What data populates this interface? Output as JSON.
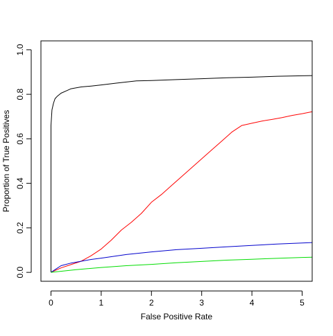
{
  "chart_data": {
    "type": "line",
    "title": "",
    "xlabel": "False Positive Rate",
    "ylabel": "Proportion of True Positives",
    "xlim": [
      -0.2,
      5.2
    ],
    "ylim": [
      -0.04,
      1.04
    ],
    "xticks": [
      0,
      1,
      2,
      3,
      4,
      5
    ],
    "yticks": [
      0.0,
      0.2,
      0.4,
      0.6,
      0.8,
      1.0
    ],
    "xtick_labels": [
      "0",
      "1",
      "2",
      "3",
      "4",
      "5"
    ],
    "ytick_labels": [
      "0.0",
      "0.2",
      "0.4",
      "0.6",
      "0.8",
      "1.0"
    ],
    "grid": false,
    "legend": "none",
    "series": [
      {
        "color": "#000000",
        "x": [
          0,
          0.0,
          0.02,
          0.05,
          0.08,
          0.12,
          0.2,
          0.3,
          0.4,
          0.6,
          0.8,
          1.0,
          1.3,
          1.7,
          2.0,
          2.5,
          3.0,
          3.5,
          4.0,
          4.5,
          5.0,
          5.2
        ],
        "y": [
          0,
          0.66,
          0.73,
          0.76,
          0.78,
          0.79,
          0.805,
          0.815,
          0.825,
          0.833,
          0.837,
          0.842,
          0.85,
          0.86,
          0.862,
          0.866,
          0.87,
          0.874,
          0.877,
          0.881,
          0.883,
          0.884
        ]
      },
      {
        "color": "#ff0000",
        "x": [
          0,
          0.2,
          0.4,
          0.6,
          0.8,
          1.0,
          1.2,
          1.4,
          1.6,
          1.8,
          2.0,
          2.2,
          2.4,
          2.6,
          2.8,
          3.0,
          3.2,
          3.4,
          3.6,
          3.8,
          4.0,
          4.2,
          4.4,
          4.6,
          4.8,
          5.0,
          5.2
        ],
        "y": [
          0,
          0.02,
          0.035,
          0.05,
          0.075,
          0.105,
          0.145,
          0.19,
          0.225,
          0.265,
          0.315,
          0.35,
          0.39,
          0.43,
          0.47,
          0.51,
          0.55,
          0.59,
          0.63,
          0.66,
          0.67,
          0.68,
          0.687,
          0.695,
          0.705,
          0.713,
          0.722
        ]
      },
      {
        "color": "#0000cc",
        "x": [
          0,
          0.1,
          0.2,
          0.4,
          0.6,
          0.8,
          1.0,
          1.5,
          2.0,
          2.5,
          3.0,
          3.5,
          4.0,
          4.5,
          5.0,
          5.2
        ],
        "y": [
          0,
          0.015,
          0.03,
          0.042,
          0.05,
          0.058,
          0.064,
          0.08,
          0.092,
          0.102,
          0.108,
          0.115,
          0.121,
          0.127,
          0.132,
          0.134
        ]
      },
      {
        "color": "#00dd00",
        "x": [
          0,
          0.5,
          1.0,
          1.5,
          2.0,
          2.5,
          3.0,
          3.5,
          4.0,
          4.5,
          5.0,
          5.2
        ],
        "y": [
          0,
          0.012,
          0.022,
          0.03,
          0.036,
          0.043,
          0.049,
          0.055,
          0.059,
          0.063,
          0.067,
          0.068
        ]
      }
    ]
  }
}
